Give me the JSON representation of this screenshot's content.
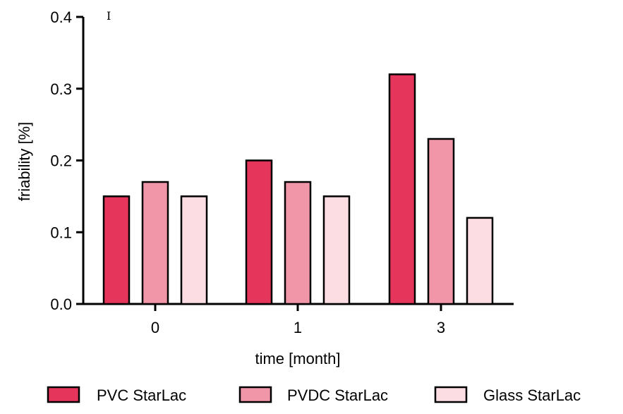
{
  "chart_data": {
    "type": "bar",
    "categories": [
      "0",
      "1",
      "3"
    ],
    "series": [
      {
        "name": "PVC StarLac",
        "values": [
          0.15,
          0.2,
          0.32
        ],
        "color": "#e5355a"
      },
      {
        "name": "PVDC StarLac",
        "values": [
          0.17,
          0.17,
          0.23
        ],
        "color": "#f195a8"
      },
      {
        "name": "Glass StarLac",
        "values": [
          0.15,
          0.15,
          0.12
        ],
        "color": "#fcdde3"
      }
    ],
    "xlabel": "time [month]",
    "ylabel": "friability [%]",
    "ylim": [
      0,
      0.4
    ],
    "yticks": [
      "0.0",
      "0.1",
      "0.2",
      "0.3",
      "0.4"
    ],
    "grid": false,
    "legend_position": "bottom"
  },
  "cursor_glyph": "I"
}
